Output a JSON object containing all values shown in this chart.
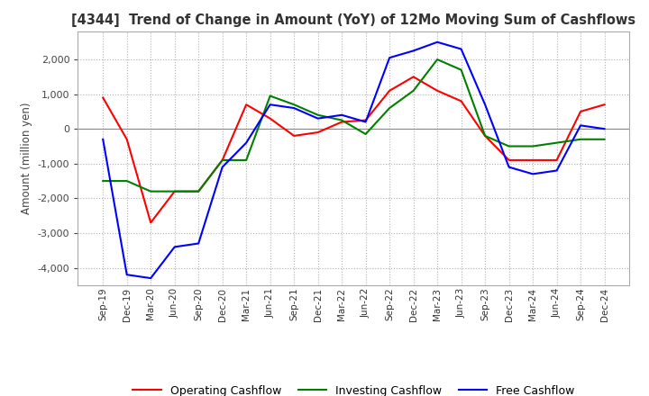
{
  "title": "[4344]  Trend of Change in Amount (YoY) of 12Mo Moving Sum of Cashflows",
  "ylabel": "Amount (million yen)",
  "x_labels": [
    "Sep-19",
    "Dec-19",
    "Mar-20",
    "Jun-20",
    "Sep-20",
    "Dec-20",
    "Mar-21",
    "Jun-21",
    "Sep-21",
    "Dec-21",
    "Mar-22",
    "Jun-22",
    "Sep-22",
    "Dec-22",
    "Mar-23",
    "Jun-23",
    "Sep-23",
    "Dec-23",
    "Mar-24",
    "Jun-24",
    "Sep-24",
    "Dec-24"
  ],
  "operating": [
    900,
    -300,
    -2700,
    -1800,
    -1800,
    -900,
    700,
    300,
    -200,
    -100,
    200,
    250,
    1100,
    1500,
    1100,
    800,
    -200,
    -900,
    -900,
    -900,
    500,
    700
  ],
  "investing": [
    -1500,
    -1500,
    -1800,
    -1800,
    -1800,
    -900,
    -900,
    950,
    700,
    400,
    250,
    -150,
    600,
    1100,
    2000,
    1700,
    -200,
    -500,
    -500,
    -400,
    -300,
    -300
  ],
  "free": [
    -300,
    -4200,
    -4300,
    -3400,
    -3300,
    -1100,
    -400,
    700,
    600,
    300,
    400,
    200,
    2050,
    2250,
    2500,
    2300,
    700,
    -1100,
    -1300,
    -1200,
    100,
    0
  ],
  "ylim": [
    -4500,
    2800
  ],
  "yticks": [
    -4000,
    -3000,
    -2000,
    -1000,
    0,
    1000,
    2000
  ],
  "operating_color": "#ff0000",
  "investing_color": "#008000",
  "free_color": "#0000ff",
  "bg_color": "#ffffff",
  "grid_color": "#b0b0b0"
}
